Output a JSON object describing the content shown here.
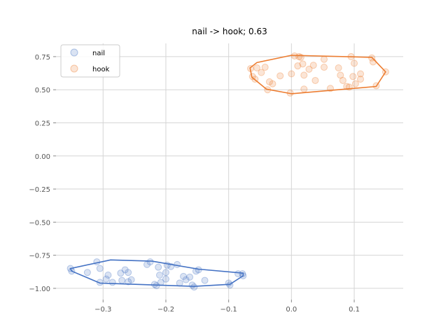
{
  "chart_data": {
    "type": "scatter",
    "title": "nail -> hook; 0.63",
    "xlabel": "",
    "ylabel": "",
    "xlim": [
      -0.375,
      0.178
    ],
    "ylim": [
      -1.085,
      0.85
    ],
    "xticks": [
      -0.3,
      -0.2,
      -0.1,
      0.0,
      0.1
    ],
    "xtick_labels": [
      "−0.3",
      "−0.2",
      "−0.1",
      "0.0",
      "0.1"
    ],
    "yticks": [
      -1.0,
      -0.75,
      -0.5,
      -0.25,
      0.0,
      0.25,
      0.5,
      0.75
    ],
    "ytick_labels": [
      "−1.00",
      "−0.75",
      "−0.50",
      "−0.25",
      "0.00",
      "0.25",
      "0.50",
      "0.75"
    ],
    "grid": true,
    "legend": "top-left",
    "series": [
      {
        "name": "nail",
        "color": "#4472c4",
        "points": [
          [
            -0.352,
            -0.85
          ],
          [
            -0.35,
            -0.87
          ],
          [
            -0.325,
            -0.88
          ],
          [
            -0.31,
            -0.8
          ],
          [
            -0.305,
            -0.85
          ],
          [
            -0.305,
            -0.955
          ],
          [
            -0.295,
            -0.93
          ],
          [
            -0.292,
            -0.9
          ],
          [
            -0.285,
            -0.955
          ],
          [
            -0.272,
            -0.885
          ],
          [
            -0.27,
            -0.94
          ],
          [
            -0.265,
            -0.86
          ],
          [
            -0.26,
            -0.88
          ],
          [
            -0.26,
            -0.95
          ],
          [
            -0.255,
            -0.935
          ],
          [
            -0.23,
            -0.82
          ],
          [
            -0.225,
            -0.8
          ],
          [
            -0.218,
            -0.97
          ],
          [
            -0.215,
            -0.98
          ],
          [
            -0.212,
            -0.84
          ],
          [
            -0.21,
            -0.9
          ],
          [
            -0.208,
            -0.955
          ],
          [
            -0.2,
            -0.88
          ],
          [
            -0.2,
            -0.93
          ],
          [
            -0.198,
            -0.825
          ],
          [
            -0.192,
            -0.835
          ],
          [
            -0.182,
            -0.82
          ],
          [
            -0.178,
            -0.96
          ],
          [
            -0.172,
            -0.91
          ],
          [
            -0.168,
            -0.935
          ],
          [
            -0.162,
            -0.915
          ],
          [
            -0.158,
            -0.975
          ],
          [
            -0.155,
            -0.99
          ],
          [
            -0.152,
            -0.87
          ],
          [
            -0.148,
            -0.86
          ],
          [
            -0.138,
            -0.94
          ],
          [
            -0.1,
            -0.96
          ],
          [
            -0.098,
            -0.975
          ],
          [
            -0.085,
            -0.89
          ],
          [
            -0.078,
            -0.89
          ],
          [
            -0.077,
            -0.905
          ]
        ],
        "hull": [
          [
            -0.352,
            -0.85
          ],
          [
            -0.288,
            -0.785
          ],
          [
            -0.222,
            -0.795
          ],
          [
            -0.148,
            -0.855
          ],
          [
            -0.077,
            -0.885
          ],
          [
            -0.077,
            -0.905
          ],
          [
            -0.098,
            -0.97
          ],
          [
            -0.155,
            -0.985
          ],
          [
            -0.305,
            -0.96
          ],
          [
            -0.35,
            -0.87
          ]
        ]
      },
      {
        "name": "hook",
        "color": "#ed7d31",
        "points": [
          [
            -0.065,
            0.66
          ],
          [
            -0.062,
            0.6
          ],
          [
            -0.058,
            0.58
          ],
          [
            -0.055,
            0.665
          ],
          [
            -0.048,
            0.63
          ],
          [
            -0.042,
            0.67
          ],
          [
            -0.038,
            0.5
          ],
          [
            -0.035,
            0.56
          ],
          [
            -0.03,
            0.545
          ],
          [
            -0.018,
            0.605
          ],
          [
            -0.002,
            0.475
          ],
          [
            0.0,
            0.62
          ],
          [
            0.005,
            0.755
          ],
          [
            0.01,
            0.68
          ],
          [
            0.012,
            0.75
          ],
          [
            0.015,
            0.745
          ],
          [
            0.018,
            0.695
          ],
          [
            0.02,
            0.61
          ],
          [
            0.02,
            0.505
          ],
          [
            0.028,
            0.655
          ],
          [
            0.035,
            0.685
          ],
          [
            0.038,
            0.57
          ],
          [
            0.052,
            0.73
          ],
          [
            0.052,
            0.67
          ],
          [
            0.062,
            0.51
          ],
          [
            0.075,
            0.665
          ],
          [
            0.078,
            0.61
          ],
          [
            0.082,
            0.57
          ],
          [
            0.088,
            0.525
          ],
          [
            0.092,
            0.52
          ],
          [
            0.095,
            0.75
          ],
          [
            0.098,
            0.6
          ],
          [
            0.1,
            0.7
          ],
          [
            0.102,
            0.545
          ],
          [
            0.11,
            0.58
          ],
          [
            0.11,
            0.62
          ],
          [
            0.128,
            0.74
          ],
          [
            0.13,
            0.71
          ],
          [
            0.135,
            0.53
          ],
          [
            0.15,
            0.635
          ]
        ],
        "hull": [
          [
            -0.066,
            0.665
          ],
          [
            -0.055,
            0.705
          ],
          [
            0.0,
            0.76
          ],
          [
            0.128,
            0.745
          ],
          [
            0.15,
            0.635
          ],
          [
            0.135,
            0.525
          ],
          [
            0.0,
            0.47
          ],
          [
            -0.04,
            0.505
          ],
          [
            -0.063,
            0.595
          ]
        ]
      }
    ]
  }
}
